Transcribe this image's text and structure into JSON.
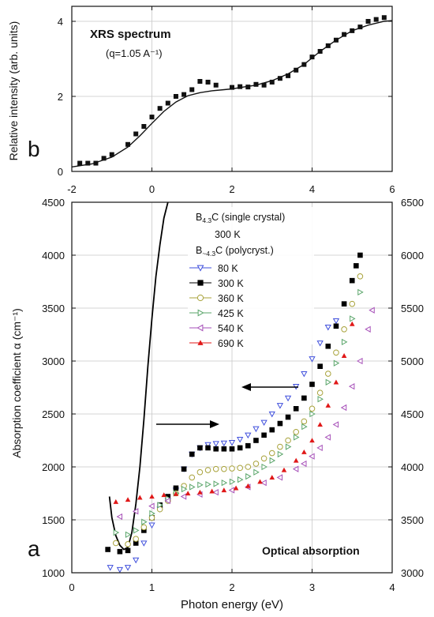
{
  "chart_data": [
    {
      "id": "b",
      "type": "scatter",
      "panel_label": "b",
      "title": "XRS spectrum",
      "subtitle": "(q=1.05 A⁻¹)",
      "xlabel": "",
      "ylabel": "Relative intensity (arb. units)",
      "xlim": [
        -2,
        6
      ],
      "ylim": [
        0,
        4.4
      ],
      "xticks": [
        -2,
        0,
        2,
        4,
        6
      ],
      "yticks": [
        0,
        2,
        4
      ],
      "grid": true,
      "series": [
        {
          "marker": "square-filled",
          "x": [
            -1.8,
            -1.6,
            -1.4,
            -1.2,
            -1.0,
            -0.6,
            -0.4,
            -0.2,
            0.0,
            0.2,
            0.4,
            0.6,
            0.8,
            1.0,
            1.2,
            1.4,
            1.6,
            2.0,
            2.2,
            2.4,
            2.6,
            2.8,
            3.0,
            3.2,
            3.4,
            3.6,
            3.8,
            4.0,
            4.2,
            4.4,
            4.6,
            4.8,
            5.0,
            5.2,
            5.4,
            5.6,
            5.8
          ],
          "y": [
            0.22,
            0.22,
            0.22,
            0.35,
            0.45,
            0.72,
            1.0,
            1.2,
            1.45,
            1.68,
            1.82,
            2.0,
            2.05,
            2.18,
            2.4,
            2.38,
            2.3,
            2.24,
            2.26,
            2.25,
            2.32,
            2.3,
            2.38,
            2.48,
            2.55,
            2.7,
            2.85,
            3.05,
            3.2,
            3.35,
            3.5,
            3.65,
            3.75,
            3.85,
            4.0,
            4.05,
            4.1
          ]
        },
        {
          "marker": "line",
          "x": [
            -2.0,
            -1.5,
            -1.0,
            -0.6,
            -0.3,
            0.0,
            0.3,
            0.6,
            0.9,
            1.2,
            1.5,
            1.8,
            2.0,
            2.3,
            2.6,
            3.0,
            3.4,
            3.8,
            4.2,
            4.6,
            5.0,
            5.4,
            5.8,
            6.0
          ],
          "y": [
            0.12,
            0.2,
            0.38,
            0.65,
            0.95,
            1.28,
            1.6,
            1.85,
            2.02,
            2.1,
            2.15,
            2.18,
            2.2,
            2.25,
            2.3,
            2.42,
            2.6,
            2.85,
            3.2,
            3.5,
            3.75,
            3.9,
            4.0,
            4.02
          ]
        }
      ]
    },
    {
      "id": "a",
      "type": "scatter",
      "panel_label": "a",
      "title": "Optical absorption",
      "xlabel": "Photon energy (eV)",
      "ylabel": "Absorption coefficient α (cm⁻¹)",
      "xlim": [
        0,
        4
      ],
      "ylim": [
        1000,
        4500
      ],
      "y2lim": [
        3000,
        6500
      ],
      "xticks": [
        0,
        1,
        2,
        3,
        4
      ],
      "yticks": [
        1000,
        1500,
        2000,
        2500,
        3000,
        3500,
        4000,
        4500
      ],
      "y2ticks": [
        3000,
        3500,
        4000,
        4500,
        5000,
        5500,
        6000,
        6500
      ],
      "grid": true,
      "legend": {
        "position": "top-center",
        "line1_main": "B",
        "line1_sub": "4.3",
        "line1_rest": "C (single crystal)",
        "line2": "300 K",
        "line3_main": "B",
        "line3_sub": "~4.3",
        "line3_rest": "C (polycryst.)",
        "entries": [
          "80 K",
          "300 K",
          "360 K",
          "425 K",
          "540 K",
          "690 K"
        ]
      },
      "series": [
        {
          "name": "300 K",
          "axis": "left",
          "marker": "line",
          "color": "#000000",
          "x": [
            0.47,
            0.5,
            0.55,
            0.6,
            0.65,
            0.7,
            0.75,
            0.8,
            0.85,
            0.9,
            0.95,
            1.0,
            1.05,
            1.1,
            1.15,
            1.2
          ],
          "y": [
            1720,
            1520,
            1350,
            1260,
            1220,
            1240,
            1380,
            1650,
            2000,
            2450,
            2950,
            3400,
            3800,
            4100,
            4350,
            4500
          ]
        },
        {
          "name": "80 K",
          "axis": "right",
          "marker": "triangle-down-open",
          "color": "#3f4fdc",
          "x": [
            0.48,
            0.6,
            0.7,
            0.8,
            0.9,
            1.0,
            1.1,
            1.2,
            1.3,
            1.4,
            1.5,
            1.6,
            1.7,
            1.8,
            1.9,
            2.0,
            2.1,
            2.2,
            2.3,
            2.4,
            2.5,
            2.6,
            2.7,
            2.8,
            2.9,
            3.0,
            3.1,
            3.2,
            3.3
          ],
          "y": [
            3050,
            3030,
            3050,
            3120,
            3280,
            3450,
            3600,
            3680,
            3780,
            3980,
            4120,
            4180,
            4210,
            4220,
            4225,
            4230,
            4260,
            4300,
            4360,
            4420,
            4500,
            4580,
            4650,
            4760,
            4880,
            5020,
            5170,
            5320,
            5380
          ]
        },
        {
          "name": "300 K",
          "axis": "right",
          "marker": "square-filled",
          "color": "#000000",
          "x": [
            0.45,
            0.6,
            0.7,
            0.8,
            0.9,
            1.0,
            1.1,
            1.2,
            1.3,
            1.4,
            1.5,
            1.6,
            1.7,
            1.8,
            1.9,
            2.0,
            2.1,
            2.2,
            2.3,
            2.4,
            2.5,
            2.6,
            2.7,
            2.8,
            2.9,
            3.0,
            3.1,
            3.2,
            3.3,
            3.4,
            3.5,
            3.55,
            3.6
          ],
          "y": [
            3220,
            3200,
            3210,
            3280,
            3400,
            3520,
            3640,
            3720,
            3800,
            3980,
            4120,
            4180,
            4180,
            4170,
            4170,
            4170,
            4180,
            4200,
            4250,
            4300,
            4350,
            4410,
            4470,
            4550,
            4650,
            4780,
            4950,
            5140,
            5330,
            5540,
            5760,
            5900,
            6000
          ]
        },
        {
          "name": "360 K",
          "axis": "right",
          "marker": "circle-open",
          "color": "#a8a23a",
          "x": [
            0.55,
            0.7,
            0.8,
            0.9,
            1.0,
            1.1,
            1.2,
            1.3,
            1.4,
            1.5,
            1.6,
            1.7,
            1.8,
            1.9,
            2.0,
            2.1,
            2.2,
            2.3,
            2.4,
            2.5,
            2.6,
            2.7,
            2.8,
            2.9,
            3.0,
            3.1,
            3.2,
            3.3,
            3.4,
            3.5,
            3.6
          ],
          "y": [
            3280,
            3270,
            3320,
            3430,
            3520,
            3600,
            3680,
            3750,
            3820,
            3900,
            3950,
            3970,
            3980,
            3980,
            3985,
            3990,
            4000,
            4030,
            4080,
            4130,
            4190,
            4250,
            4330,
            4430,
            4550,
            4700,
            4880,
            5080,
            5300,
            5540,
            5800
          ]
        },
        {
          "name": "425 K",
          "axis": "right",
          "marker": "triangle-right-open",
          "color": "#5aa56a",
          "x": [
            0.55,
            0.7,
            0.8,
            0.9,
            1.0,
            1.1,
            1.2,
            1.3,
            1.4,
            1.5,
            1.6,
            1.7,
            1.8,
            1.9,
            2.0,
            2.1,
            2.2,
            2.3,
            2.4,
            2.5,
            2.6,
            2.7,
            2.8,
            2.9,
            3.0,
            3.1,
            3.2,
            3.3,
            3.4,
            3.5,
            3.6
          ],
          "y": [
            3380,
            3360,
            3400,
            3480,
            3560,
            3640,
            3700,
            3750,
            3790,
            3810,
            3830,
            3835,
            3840,
            3850,
            3860,
            3880,
            3910,
            3950,
            4000,
            4060,
            4120,
            4190,
            4280,
            4380,
            4500,
            4640,
            4800,
            4980,
            5180,
            5400,
            5650
          ]
        },
        {
          "name": "540 K",
          "axis": "right",
          "marker": "triangle-left-open",
          "color": "#a64fb8",
          "x": [
            0.6,
            0.8,
            1.0,
            1.2,
            1.4,
            1.6,
            1.8,
            2.0,
            2.2,
            2.4,
            2.6,
            2.8,
            2.9,
            3.0,
            3.1,
            3.2,
            3.3,
            3.4,
            3.5,
            3.6,
            3.7,
            3.75
          ],
          "y": [
            3530,
            3580,
            3630,
            3680,
            3720,
            3740,
            3760,
            3780,
            3810,
            3850,
            3900,
            3980,
            4030,
            4100,
            4180,
            4280,
            4400,
            4560,
            4760,
            5000,
            5300,
            5480
          ]
        },
        {
          "name": "690 K",
          "axis": "right",
          "marker": "triangle-up-filled",
          "color": "#e01818",
          "x": [
            0.55,
            0.7,
            0.85,
            1.0,
            1.15,
            1.3,
            1.45,
            1.6,
            1.75,
            1.9,
            2.05,
            2.2,
            2.35,
            2.5,
            2.65,
            2.8,
            2.9,
            3.0,
            3.1,
            3.2,
            3.3,
            3.4,
            3.5
          ],
          "y": [
            3670,
            3690,
            3710,
            3720,
            3735,
            3745,
            3750,
            3760,
            3770,
            3780,
            3800,
            3820,
            3860,
            3900,
            3970,
            4060,
            4140,
            4250,
            4400,
            4580,
            4800,
            5050,
            5350
          ]
        }
      ]
    }
  ]
}
